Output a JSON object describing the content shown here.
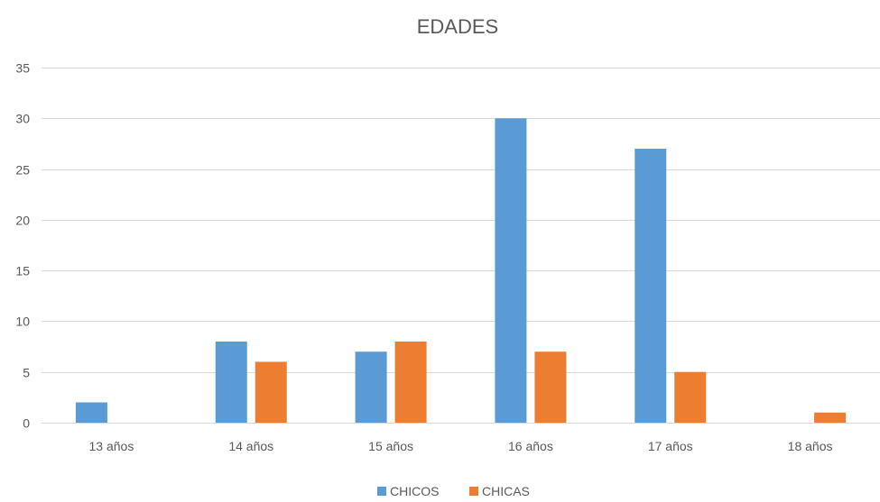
{
  "chart_data": {
    "type": "bar",
    "title": "EDADES",
    "categories": [
      "13 años",
      "14 años",
      "15 años",
      "16 años",
      "17 años",
      "18 años"
    ],
    "series": [
      {
        "name": "CHICOS",
        "color": "#5b9bd5",
        "values": [
          2,
          8,
          7,
          30,
          27,
          0
        ]
      },
      {
        "name": "CHICAS",
        "color": "#ed7d31",
        "values": [
          0,
          6,
          8,
          7,
          5,
          1
        ]
      }
    ],
    "ylim": [
      0,
      35
    ],
    "yticks": [
      0,
      5,
      10,
      15,
      20,
      25,
      30,
      35
    ],
    "grid": true,
    "legend_position": "bottom"
  }
}
